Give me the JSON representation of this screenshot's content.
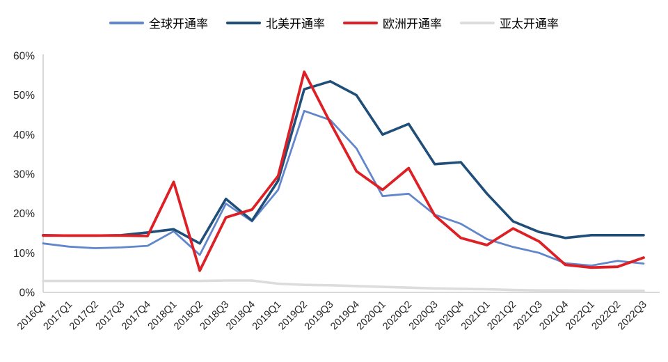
{
  "chart_data": {
    "type": "line",
    "title": "",
    "xlabel": "",
    "ylabel": "",
    "ylim": [
      0,
      60
    ],
    "ytick_step": 10,
    "ytick_suffix": "%",
    "grid": false,
    "legend_position": "top-center",
    "axis_color": "#d9d9d9",
    "tick_label_color": "#262626",
    "x_tick_rotation": -45,
    "categories": [
      "2016Q4",
      "2017Q1",
      "2017Q2",
      "2017Q3",
      "2017Q4",
      "2018Q1",
      "2018Q2",
      "2018Q3",
      "2018Q4",
      "2019Q1",
      "2019Q2",
      "2019Q3",
      "2019Q4",
      "2020Q1",
      "2020Q2",
      "2020Q3",
      "2020Q4",
      "2021Q1",
      "2021Q2",
      "2021Q3",
      "2021Q4",
      "2022Q1",
      "2022Q2",
      "2022Q3"
    ],
    "series": [
      {
        "name": "全球开通率",
        "color": "#6286cc",
        "line_width": 2.8,
        "values": [
          12.4,
          11.6,
          11.2,
          11.4,
          11.8,
          15.5,
          9.5,
          22.5,
          18.0,
          26.0,
          46.0,
          43.7,
          36.5,
          24.4,
          25.0,
          19.7,
          17.4,
          13.5,
          11.5,
          10.0,
          7.4,
          6.8,
          8.0,
          7.3
        ]
      },
      {
        "name": "北美开通率",
        "color": "#1f4e79",
        "line_width": 3.6,
        "values": [
          14.5,
          14.4,
          14.4,
          14.5,
          15.2,
          16.0,
          12.4,
          23.7,
          18.2,
          28.3,
          51.5,
          53.5,
          50.0,
          40.0,
          42.7,
          32.5,
          33.0,
          25.0,
          18.0,
          15.3,
          13.8,
          14.5,
          14.5,
          14.5
        ]
      },
      {
        "name": "欧洲开通率",
        "color": "#dd2026",
        "line_width": 3.8,
        "values": [
          14.4,
          14.4,
          14.4,
          14.4,
          14.3,
          28.0,
          5.5,
          19.0,
          21.0,
          29.5,
          55.9,
          43.0,
          30.7,
          26.0,
          31.5,
          19.5,
          13.8,
          12.0,
          16.2,
          12.9,
          7.0,
          6.3,
          6.5,
          8.8
        ]
      },
      {
        "name": "亚太开通率",
        "color": "#dcdcdc",
        "line_width": 3.6,
        "values": [
          2.9,
          2.9,
          2.9,
          2.9,
          2.9,
          2.9,
          2.9,
          3.0,
          3.0,
          2.2,
          1.9,
          1.8,
          1.6,
          1.4,
          1.2,
          1.0,
          0.9,
          0.8,
          0.6,
          0.5,
          0.5,
          0.4,
          0.4,
          0.4
        ]
      }
    ]
  }
}
